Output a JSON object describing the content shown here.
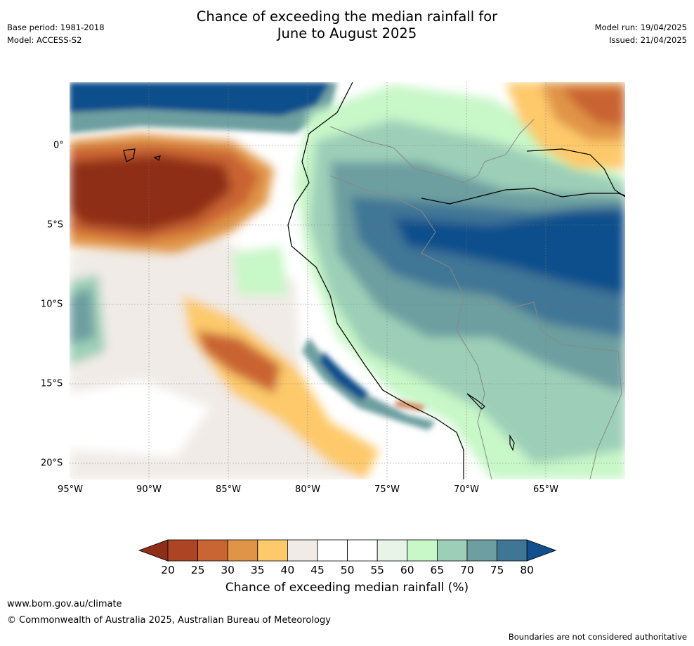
{
  "title_line1": "Chance of exceeding the median rainfall for",
  "title_line2": "June to August 2025",
  "meta_left": [
    "Base period: 1981-2018",
    "Model: ACCESS-S2"
  ],
  "meta_right": [
    "Model run: 19/04/2025",
    "Issued: 21/04/2025"
  ],
  "x_ticks": [
    "95°W",
    "90°W",
    "85°W",
    "80°W",
    "75°W",
    "70°W",
    "65°W"
  ],
  "y_ticks": [
    "0°",
    "5°S",
    "10°S",
    "15°S",
    "20°S"
  ],
  "colorbar": {
    "label": "Chance of exceeding median rainfall (%)",
    "ticks": [
      "20",
      "25",
      "30",
      "35",
      "40",
      "45",
      "50",
      "55",
      "60",
      "65",
      "70",
      "75",
      "80"
    ],
    "colors": [
      "#8f2e17",
      "#ad4524",
      "#c96433",
      "#e09447",
      "#fdc96a",
      "#f0ebe6",
      "#ffffff",
      "#ffffff",
      "#e8f4e8",
      "#c8f7c8",
      "#9dcfb8",
      "#6d9fa0",
      "#3f7696",
      "#11508c"
    ]
  },
  "footer": {
    "url": "www.bom.gov.au/climate",
    "copyright": "© Commonwealth of Australia 2025, Australian Bureau of Meteorology",
    "note": "Boundaries are not considered authoritative"
  }
}
